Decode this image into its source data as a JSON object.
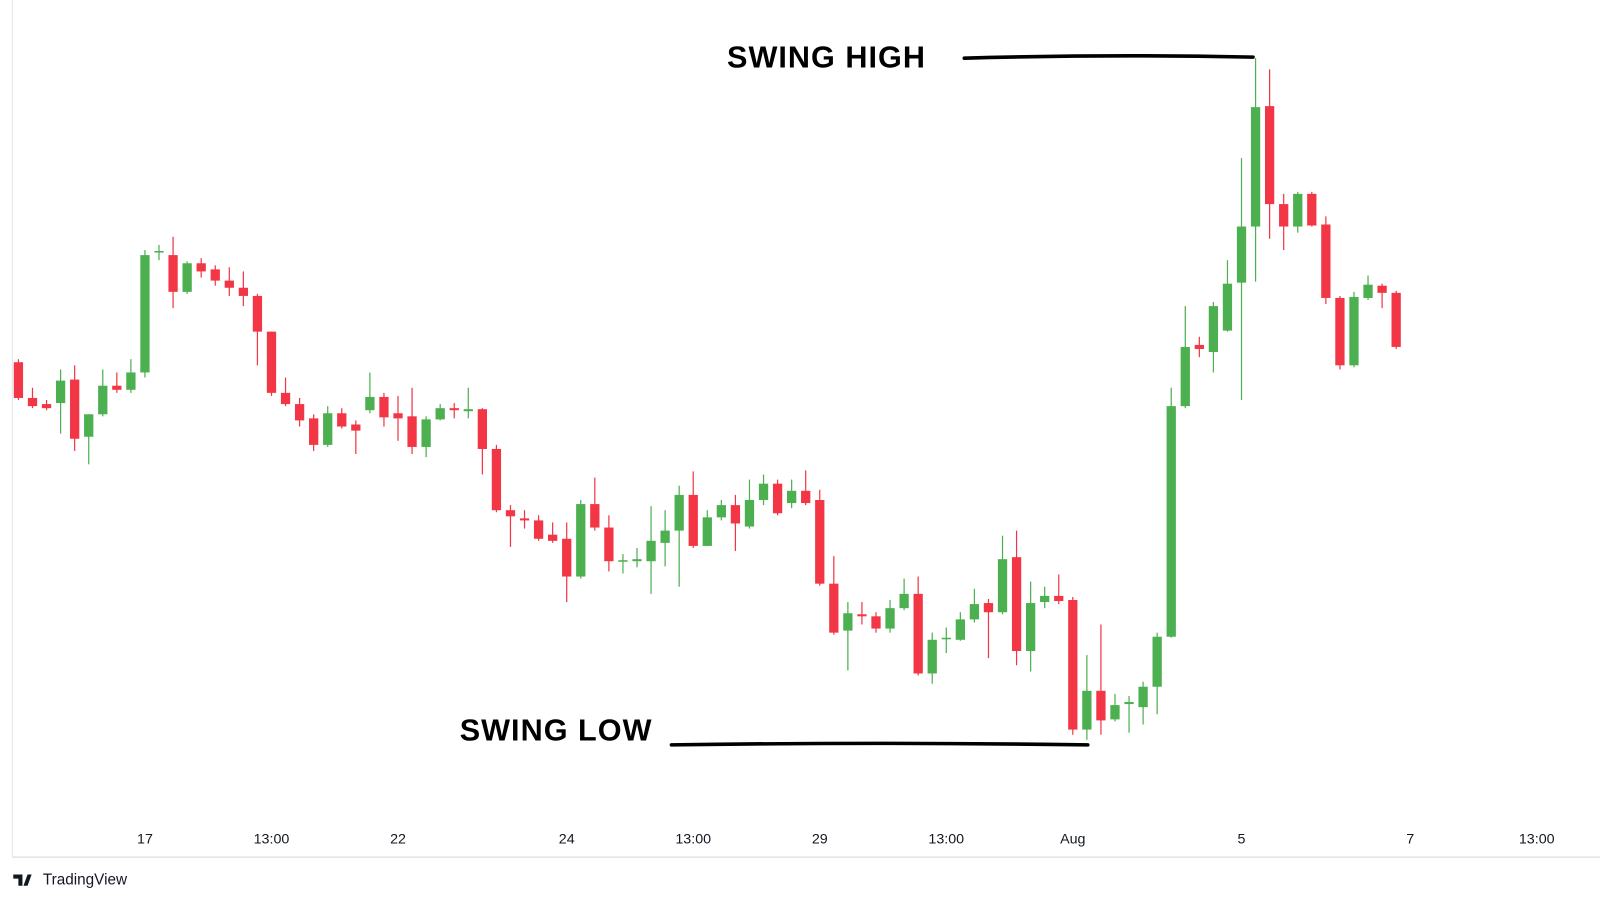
{
  "chart_data": {
    "type": "candlestick",
    "annotations": [
      "SWING HIGH",
      "SWING LOW"
    ],
    "watermark": "TradingView",
    "up_color": "#4caf50",
    "down_color": "#f23645",
    "open": [
      525,
      490,
      484,
      485,
      508,
      452,
      474,
      502,
      498,
      515,
      633,
      630,
      594,
      622,
      616,
      605,
      598,
      590,
      555,
      495,
      484,
      470,
      444,
      475,
      464,
      478,
      491,
      475,
      472,
      442,
      469,
      480,
      477,
      479,
      440,
      380,
      372,
      370,
      356,
      352,
      315,
      386,
      363,
      330,
      330,
      330,
      348,
      360,
      395,
      345,
      373,
      385,
      364,
      390,
      406,
      387,
      399,
      390,
      308,
      262,
      278,
      276,
      264,
      284,
      298,
      220,
      254,
      253,
      273,
      289,
      280,
      334,
      242,
      290,
      296,
      292,
      165,
      203,
      175,
      190,
      187,
      207,
      256,
      482,
      542,
      535,
      556,
      603,
      658,
      776,
      680,
      658,
      690,
      660,
      588,
      522,
      588,
      600,
      593
    ],
    "high": [
      528,
      500,
      488,
      518,
      522,
      474,
      518,
      515,
      528,
      635,
      640,
      648,
      624,
      627,
      620,
      618,
      614,
      592,
      555,
      510,
      490,
      474,
      482,
      480,
      468,
      515,
      495,
      492,
      500,
      472,
      484,
      485,
      500,
      480,
      444,
      385,
      380,
      375,
      368,
      368,
      390,
      412,
      375,
      337,
      343,
      384,
      380,
      404,
      418,
      380,
      390,
      395,
      410,
      415,
      410,
      410,
      419,
      400,
      335,
      290,
      290,
      280,
      292,
      313,
      315,
      260,
      265,
      280,
      303,
      293,
      355,
      360,
      310,
      305,
      317,
      295,
      238,
      268,
      200,
      198,
      212,
      260,
      500,
      580,
      550,
      584,
      625,
      725,
      823,
      812,
      690,
      692,
      692,
      668,
      590,
      594,
      610,
      602,
      595
    ],
    "low": [
      488,
      480,
      478,
      455,
      438,
      425,
      472,
      495,
      495,
      510,
      625,
      578,
      592,
      608,
      600,
      590,
      580,
      522,
      492,
      482,
      462,
      438,
      442,
      460,
      435,
      475,
      462,
      448,
      435,
      432,
      468,
      470,
      470,
      415,
      378,
      344,
      362,
      350,
      348,
      290,
      313,
      360,
      320,
      318,
      324,
      298,
      325,
      305,
      343,
      345,
      370,
      340,
      362,
      385,
      375,
      382,
      385,
      306,
      258,
      223,
      268,
      260,
      260,
      282,
      218,
      210,
      240,
      252,
      270,
      235,
      278,
      228,
      222,
      284,
      288,
      160,
      155,
      160,
      173,
      162,
      170,
      180,
      255,
      480,
      530,
      515,
      555,
      488,
      604,
      646,
      635,
      652,
      658,
      582,
      518,
      520,
      586,
      578,
      538
    ],
    "close": [
      490,
      482,
      480,
      507,
      450,
      474,
      502,
      498,
      515,
      630,
      634,
      594,
      622,
      614,
      605,
      598,
      590,
      555,
      495,
      484,
      468,
      444,
      475,
      462,
      458,
      491,
      471,
      470,
      442,
      469,
      480,
      478,
      479,
      440,
      380,
      374,
      370,
      352,
      350,
      315,
      386,
      363,
      330,
      331,
      332,
      350,
      360,
      395,
      345,
      373,
      385,
      367,
      390,
      406,
      377,
      399,
      387,
      308,
      260,
      279,
      276,
      264,
      284,
      298,
      220,
      253,
      255,
      273,
      288,
      280,
      332,
      242,
      289,
      296,
      291,
      165,
      203,
      174,
      189,
      192,
      207,
      256,
      482,
      540,
      538,
      580,
      602,
      658,
      775,
      680,
      658,
      690,
      659,
      588,
      522,
      589,
      601,
      593,
      540
    ],
    "xlim": [
      -0.44,
      112.5
    ],
    "xticks": [
      {
        "value": 9,
        "label": "17"
      },
      {
        "value": 18,
        "label": "13:00"
      },
      {
        "value": 27,
        "label": "22"
      },
      {
        "value": 39,
        "label": "24"
      },
      {
        "value": 48,
        "label": "13:00"
      },
      {
        "value": 57,
        "label": "29"
      },
      {
        "value": 66,
        "label": "13:00"
      },
      {
        "value": 75,
        "label": "Aug"
      },
      {
        "value": 87,
        "label": "5"
      },
      {
        "value": 99,
        "label": "7"
      },
      {
        "value": 108,
        "label": "13:00"
      }
    ],
    "ylim": [
      0,
      880
    ]
  }
}
